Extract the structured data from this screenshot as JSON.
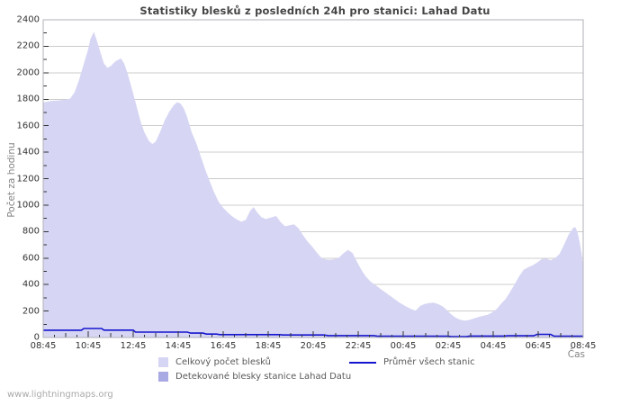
{
  "title": "Statistiky blesků z posledních 24h pro stanici: Lahad Datu",
  "watermark": "www.lightningmaps.org",
  "axes": {
    "y_label": "Počet za hodinu",
    "x_label": "Čas"
  },
  "legend": {
    "total": "Celkový počet blesků",
    "average": "Průměr všech stanic",
    "station": "Detekované blesky stanice Lahad Datu"
  },
  "colors": {
    "total_area": "#d6d6f4",
    "station_area": "#a9a9e4",
    "avg_line": "#1515cd",
    "grid": "#cccccc",
    "border": "#b0b0b8",
    "tick": "#333333"
  },
  "chart_data": {
    "type": "area",
    "title": "Statistiky blesků z posledních 24h pro stanici: Lahad Datu",
    "xlabel": "Čas",
    "ylabel": "Počet za hodinu",
    "ylim": [
      0,
      2400
    ],
    "y_tick_step": 200,
    "y_minor_step": 100,
    "x_span_hours": 24,
    "x_tick_labels": [
      "08:45",
      "10:45",
      "12:45",
      "14:45",
      "16:45",
      "18:45",
      "20:45",
      "22:45",
      "00:45",
      "02:45",
      "04:45",
      "06:45",
      "08:45"
    ],
    "grid": true,
    "legend_position": "bottom",
    "series": [
      {
        "name": "Celkový počet blesků",
        "kind": "area",
        "color_key": "total_area",
        "points": [
          [
            0,
            1775
          ],
          [
            0.2,
            1782
          ],
          [
            0.4,
            1788
          ],
          [
            0.6,
            1790
          ],
          [
            0.8,
            1793
          ],
          [
            1.0,
            1797
          ],
          [
            1.2,
            1805
          ],
          [
            1.4,
            1855
          ],
          [
            1.6,
            1950
          ],
          [
            1.8,
            2065
          ],
          [
            2.0,
            2180
          ],
          [
            2.1,
            2255
          ],
          [
            2.25,
            2310
          ],
          [
            2.4,
            2235
          ],
          [
            2.55,
            2150
          ],
          [
            2.7,
            2070
          ],
          [
            2.85,
            2038
          ],
          [
            3.0,
            2050
          ],
          [
            3.2,
            2085
          ],
          [
            3.45,
            2110
          ],
          [
            3.6,
            2070
          ],
          [
            3.75,
            1995
          ],
          [
            3.9,
            1905
          ],
          [
            4.05,
            1810
          ],
          [
            4.2,
            1715
          ],
          [
            4.35,
            1620
          ],
          [
            4.5,
            1550
          ],
          [
            4.7,
            1485
          ],
          [
            4.85,
            1462
          ],
          [
            5.0,
            1480
          ],
          [
            5.2,
            1555
          ],
          [
            5.4,
            1640
          ],
          [
            5.6,
            1705
          ],
          [
            5.8,
            1755
          ],
          [
            5.95,
            1778
          ],
          [
            6.1,
            1768
          ],
          [
            6.25,
            1730
          ],
          [
            6.4,
            1665
          ],
          [
            6.6,
            1550
          ],
          [
            6.8,
            1470
          ],
          [
            7.0,
            1370
          ],
          [
            7.2,
            1270
          ],
          [
            7.4,
            1180
          ],
          [
            7.6,
            1095
          ],
          [
            7.8,
            1025
          ],
          [
            8.0,
            980
          ],
          [
            8.2,
            945
          ],
          [
            8.4,
            915
          ],
          [
            8.6,
            892
          ],
          [
            8.8,
            875
          ],
          [
            9.0,
            888
          ],
          [
            9.2,
            958
          ],
          [
            9.35,
            985
          ],
          [
            9.5,
            948
          ],
          [
            9.7,
            908
          ],
          [
            9.9,
            895
          ],
          [
            10.1,
            905
          ],
          [
            10.35,
            918
          ],
          [
            10.55,
            872
          ],
          [
            10.75,
            840
          ],
          [
            10.95,
            848
          ],
          [
            11.15,
            855
          ],
          [
            11.35,
            825
          ],
          [
            11.55,
            772
          ],
          [
            11.75,
            725
          ],
          [
            11.95,
            688
          ],
          [
            12.15,
            643
          ],
          [
            12.35,
            605
          ],
          [
            12.55,
            590
          ],
          [
            12.75,
            588
          ],
          [
            12.95,
            592
          ],
          [
            13.15,
            605
          ],
          [
            13.35,
            638
          ],
          [
            13.55,
            662
          ],
          [
            13.75,
            638
          ],
          [
            13.95,
            572
          ],
          [
            14.15,
            508
          ],
          [
            14.35,
            458
          ],
          [
            14.55,
            422
          ],
          [
            14.75,
            398
          ],
          [
            14.95,
            372
          ],
          [
            15.2,
            342
          ],
          [
            15.5,
            305
          ],
          [
            15.8,
            268
          ],
          [
            16.1,
            237
          ],
          [
            16.35,
            215
          ],
          [
            16.55,
            203
          ],
          [
            16.75,
            238
          ],
          [
            16.95,
            253
          ],
          [
            17.15,
            260
          ],
          [
            17.35,
            264
          ],
          [
            17.55,
            252
          ],
          [
            17.75,
            235
          ],
          [
            17.95,
            205
          ],
          [
            18.15,
            172
          ],
          [
            18.35,
            148
          ],
          [
            18.55,
            133
          ],
          [
            18.75,
            128
          ],
          [
            18.95,
            133
          ],
          [
            19.15,
            145
          ],
          [
            19.35,
            156
          ],
          [
            19.55,
            164
          ],
          [
            19.75,
            172
          ],
          [
            19.95,
            190
          ],
          [
            20.15,
            215
          ],
          [
            20.35,
            255
          ],
          [
            20.55,
            292
          ],
          [
            20.75,
            345
          ],
          [
            20.95,
            402
          ],
          [
            21.15,
            462
          ],
          [
            21.35,
            512
          ],
          [
            21.55,
            530
          ],
          [
            21.75,
            546
          ],
          [
            21.95,
            566
          ],
          [
            22.15,
            592
          ],
          [
            22.35,
            596
          ],
          [
            22.55,
            584
          ],
          [
            22.75,
            600
          ],
          [
            22.95,
            632
          ],
          [
            23.15,
            700
          ],
          [
            23.35,
            778
          ],
          [
            23.55,
            828
          ],
          [
            23.65,
            835
          ],
          [
            23.75,
            792
          ],
          [
            23.85,
            714
          ],
          [
            23.95,
            612
          ],
          [
            24,
            520
          ]
        ]
      },
      {
        "name": "Detekované blesky stanice Lahad Datu",
        "kind": "area",
        "color_key": "station_area",
        "points": [
          [
            0,
            0
          ],
          [
            24,
            0
          ]
        ]
      },
      {
        "name": "Průměr všech stanic",
        "kind": "line",
        "color_key": "avg_line",
        "points": [
          [
            0,
            55
          ],
          [
            1.7,
            55
          ],
          [
            1.8,
            68
          ],
          [
            2.6,
            68
          ],
          [
            2.7,
            56
          ],
          [
            4.0,
            56
          ],
          [
            4.1,
            41
          ],
          [
            6.4,
            41
          ],
          [
            6.55,
            33
          ],
          [
            7.1,
            33
          ],
          [
            7.25,
            26
          ],
          [
            7.7,
            26
          ],
          [
            7.85,
            22
          ],
          [
            10.5,
            22
          ],
          [
            10.65,
            19
          ],
          [
            12.5,
            19
          ],
          [
            12.65,
            14
          ],
          [
            14.7,
            14
          ],
          [
            14.85,
            10
          ],
          [
            18.0,
            10
          ],
          [
            18.15,
            7
          ],
          [
            18.8,
            7
          ],
          [
            18.95,
            11
          ],
          [
            20.5,
            11
          ],
          [
            20.65,
            13
          ],
          [
            21.8,
            13
          ],
          [
            21.95,
            24
          ],
          [
            22.55,
            24
          ],
          [
            22.7,
            10
          ],
          [
            24,
            10
          ]
        ]
      }
    ]
  }
}
